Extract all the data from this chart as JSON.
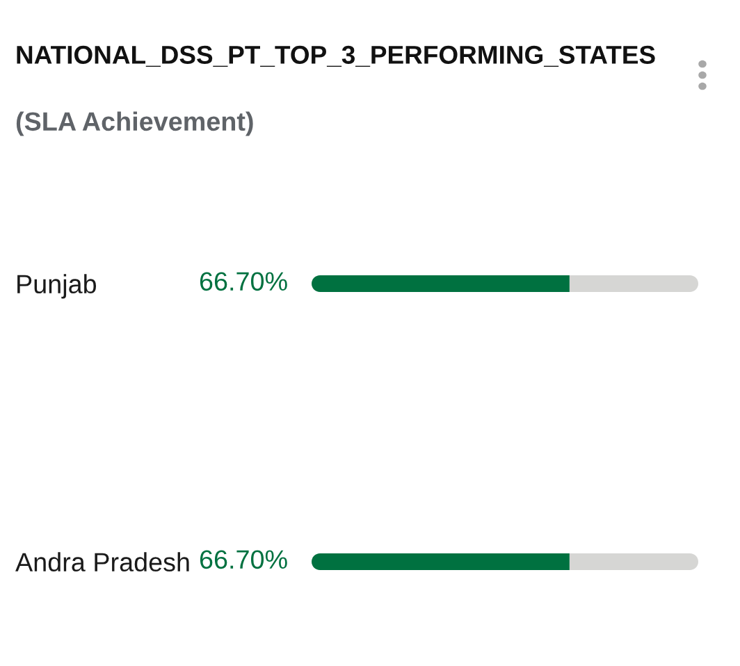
{
  "chart_data": {
    "type": "bar",
    "orientation": "horizontal",
    "stacked": true,
    "title": "NATIONAL_DSS_PT_TOP_3_PERFORMING_STATES",
    "subtitle": "(SLA Achievement)",
    "categories": [
      "Punjab",
      "Andra Pradesh"
    ],
    "series": [
      {
        "color": "#007140",
        "values": [
          66.7,
          66.7
        ],
        "value_labels": [
          "66.70%",
          "66.70%"
        ]
      },
      {
        "color": "#d6d6d4",
        "values": [
          33.3,
          33.3
        ]
      }
    ],
    "xlim": [
      0,
      100
    ],
    "tick_labels": "y"
  }
}
